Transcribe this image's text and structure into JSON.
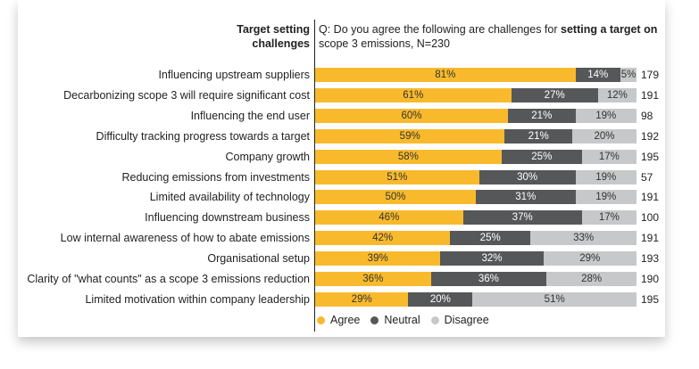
{
  "header": {
    "left_line1": "Target setting",
    "left_line2": "challenges",
    "q_prefix": "Q: Do you agree the following are challenges for ",
    "q_bold": "setting a target on",
    "q_line2": "scope 3 emissions, N=230"
  },
  "colors": {
    "agree": "#f8ba2c",
    "neutral": "#555759",
    "disagree": "#c7c8c9"
  },
  "chart_data": {
    "type": "bar",
    "orientation": "horizontal",
    "stacked": true,
    "xlim": [
      0,
      100
    ],
    "categories": [
      "Influencing upstream suppliers",
      "Decarbonizing scope 3 will require significant cost",
      "Influencing the end user",
      "Difficulty tracking progress towards a target",
      "Company growth",
      "Reducing emissions from investments",
      "Limited availability of technology",
      "Influencing downstream business",
      "Low internal awareness of how to abate emissions",
      "Organisational setup",
      "Clarity of \"what counts\" as a scope 3 emissions reduction",
      "Limited motivation within company leadership"
    ],
    "series": [
      {
        "name": "Agree",
        "values": [
          81,
          61,
          60,
          59,
          58,
          51,
          50,
          46,
          42,
          39,
          36,
          29
        ]
      },
      {
        "name": "Neutral",
        "values": [
          14,
          27,
          21,
          21,
          25,
          30,
          31,
          37,
          25,
          32,
          36,
          20
        ]
      },
      {
        "name": "Disagree",
        "values": [
          5,
          12,
          19,
          20,
          17,
          19,
          19,
          17,
          33,
          29,
          28,
          51
        ]
      }
    ],
    "n_values": [
      179,
      191,
      98,
      192,
      195,
      57,
      191,
      100,
      191,
      193,
      190,
      195
    ],
    "legend_position": "bottom"
  }
}
